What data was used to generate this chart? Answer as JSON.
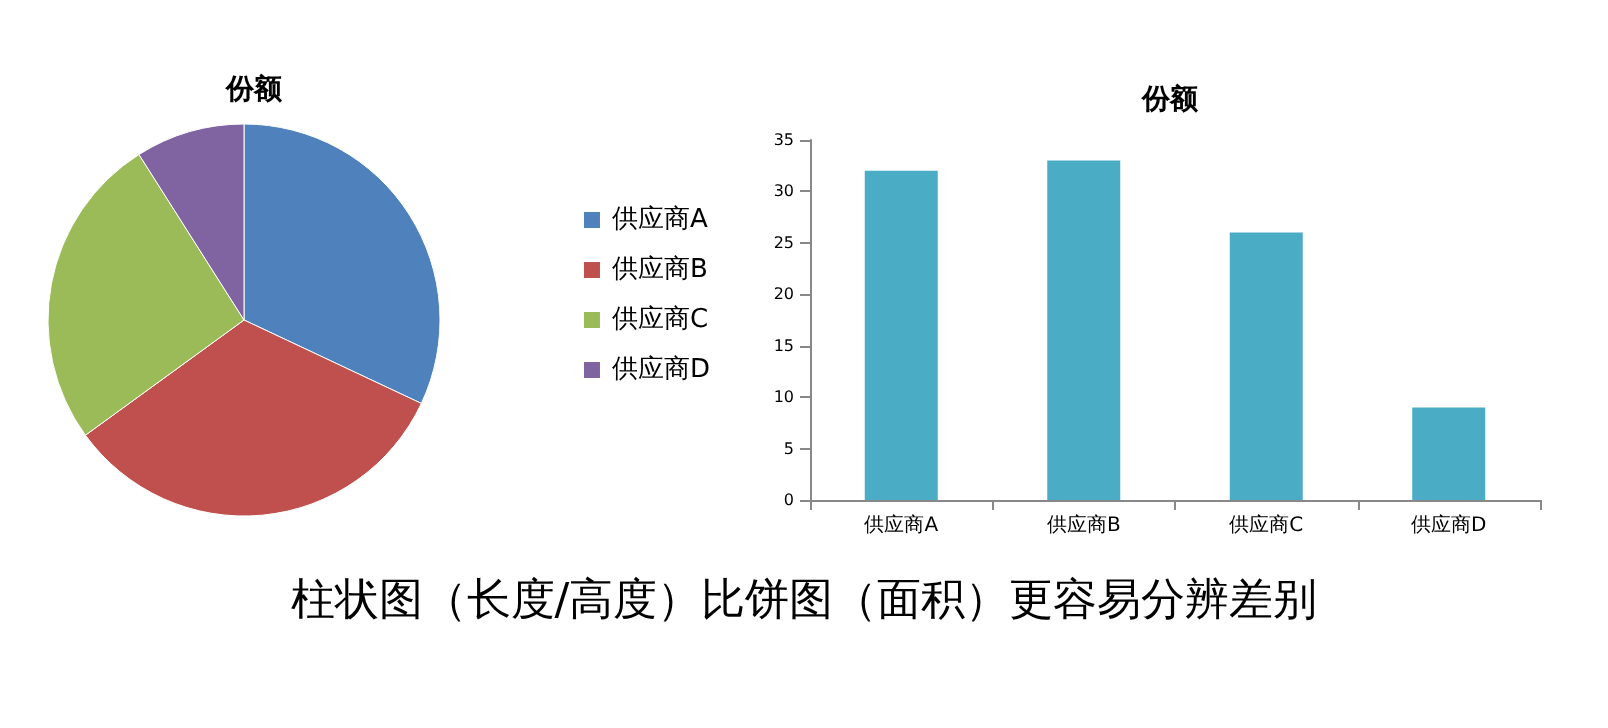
{
  "chart_data": [
    {
      "type": "pie",
      "title": "份额",
      "categories": [
        "供应商A",
        "供应商B",
        "供应商C",
        "供应商D"
      ],
      "values": [
        32,
        33,
        26,
        9
      ],
      "colors": [
        "#4f81bd",
        "#c0504d",
        "#9bbb59",
        "#8064a2"
      ],
      "legend": "right"
    },
    {
      "type": "bar",
      "title": "份额",
      "categories": [
        "供应商A",
        "供应商B",
        "供应商C",
        "供应商D"
      ],
      "values": [
        32,
        33,
        26,
        9
      ],
      "color": "#4bacc6",
      "ylim": [
        0,
        35
      ],
      "yticks": [
        0,
        5,
        10,
        15,
        20,
        25,
        30,
        35
      ],
      "grid": false,
      "legend": false,
      "annotations": [
        "柱状图（长度/高度）比饼图（面积）更容易分辨差别"
      ]
    }
  ]
}
